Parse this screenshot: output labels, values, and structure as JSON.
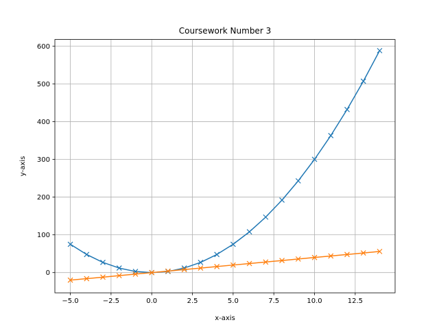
{
  "chart_data": {
    "type": "line",
    "title": "Coursework Number 3",
    "xlabel": "x-axis",
    "ylabel": "y-axis",
    "xlim": [
      -5.95,
      14.95
    ],
    "ylim": [
      -53.55,
      617.55
    ],
    "xticks": [
      -5.0,
      -2.5,
      0.0,
      2.5,
      5.0,
      7.5,
      10.0,
      12.5
    ],
    "xtick_labels": [
      "−5.0",
      "−2.5",
      "0.0",
      "2.5",
      "5.0",
      "7.5",
      "10.0",
      "12.5"
    ],
    "yticks": [
      0,
      100,
      200,
      300,
      400,
      500,
      600
    ],
    "ytick_labels": [
      "0",
      "100",
      "200",
      "300",
      "400",
      "500",
      "600"
    ],
    "grid": true,
    "marker": "x",
    "x": [
      -5,
      -4,
      -3,
      -2,
      -1,
      0,
      1,
      2,
      3,
      4,
      5,
      6,
      7,
      8,
      9,
      10,
      11,
      12,
      13,
      14
    ],
    "series": [
      {
        "color": "#1f77b4",
        "values": [
          75,
          48,
          27,
          12,
          3,
          0,
          3,
          12,
          27,
          48,
          75,
          108,
          147,
          192,
          243,
          300,
          363,
          432,
          507,
          588
        ]
      },
      {
        "color": "#ff7f0e",
        "values": [
          -20,
          -16,
          -12,
          -8,
          -4,
          0,
          4,
          8,
          12,
          16,
          20,
          24,
          28,
          32,
          36,
          40,
          44,
          48,
          52,
          56
        ]
      }
    ]
  }
}
